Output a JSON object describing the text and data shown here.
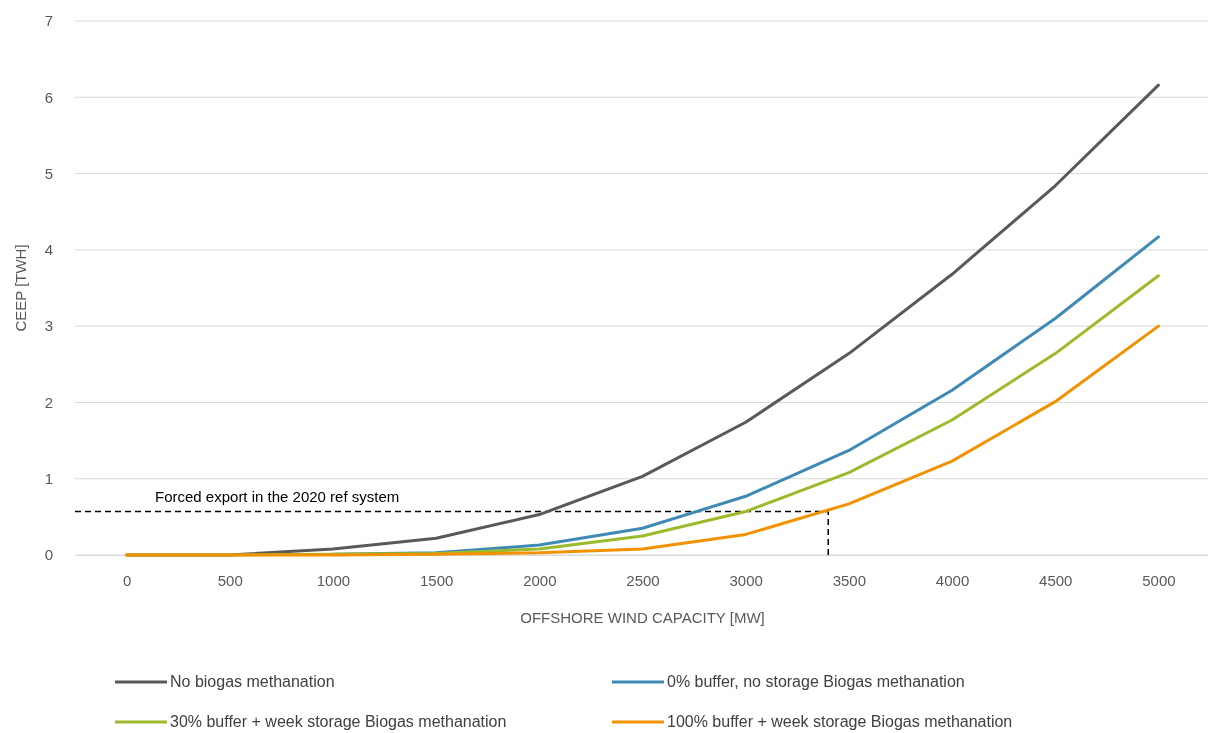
{
  "chart_data": {
    "type": "line",
    "xlabel": "OFFSHORE WIND CAPACITY [MW]",
    "ylabel": "CEEP [TWH]",
    "x": [
      0,
      500,
      1000,
      1500,
      2000,
      2500,
      3000,
      3500,
      4000,
      4500,
      5000
    ],
    "xlim": [
      -250,
      5250
    ],
    "xticks": [
      0,
      500,
      1000,
      1500,
      2000,
      2500,
      3000,
      3500,
      4000,
      4500,
      5000
    ],
    "ylim": [
      0,
      7
    ],
    "yticks": [
      0,
      1,
      2,
      3,
      4,
      5,
      6,
      7
    ],
    "grid": "y",
    "legend": "bottom",
    "marker": "none",
    "line_style": "solid",
    "series": [
      {
        "name": "No biogas methanation",
        "color": "#595959",
        "values": [
          0,
          0,
          0.08,
          0.22,
          0.53,
          1.03,
          1.74,
          2.64,
          3.68,
          4.84,
          6.16
        ]
      },
      {
        "name": "0% buffer, no storage Biogas methanation",
        "color": "#3e8ab5",
        "values": [
          null,
          null,
          0.01,
          0.03,
          0.13,
          0.35,
          0.77,
          1.37,
          2.16,
          3.1,
          4.17
        ]
      },
      {
        "name": "30% buffer + week storage Biogas methanation",
        "color": "#9bbb2c",
        "values": [
          0,
          0,
          0.01,
          0.02,
          0.08,
          0.25,
          0.57,
          1.08,
          1.77,
          2.64,
          3.66
        ]
      },
      {
        "name": "100% buffer + week storage Biogas methanation",
        "color": "#f39200",
        "values": [
          0,
          0,
          0,
          0.01,
          0.03,
          0.08,
          0.27,
          0.67,
          1.23,
          2.01,
          3.0
        ]
      }
    ],
    "ref_lines": [
      {
        "axis": "y",
        "value": 0.57,
        "label": "Forced export in the 2020 ref system",
        "color": "#000000",
        "line_style": "dashed"
      },
      {
        "axis": "x",
        "value": 3400,
        "color": "#000000",
        "line_style": "dashed"
      }
    ]
  }
}
